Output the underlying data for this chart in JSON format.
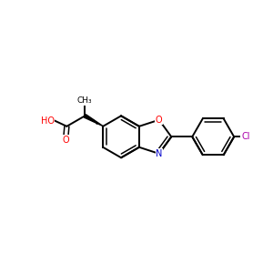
{
  "background_color": "#ffffff",
  "bond_color": "#000000",
  "atom_colors": {
    "O": "#ff0000",
    "N": "#0000cc",
    "Cl": "#aa00aa",
    "C": "#000000"
  },
  "figsize": [
    3.0,
    3.0
  ],
  "dpi": 100,
  "xlim": [
    0,
    10
  ],
  "ylim": [
    0,
    10
  ],
  "bl": 0.78,
  "lw": 1.4,
  "lw2": 1.1,
  "fs": 7.0
}
